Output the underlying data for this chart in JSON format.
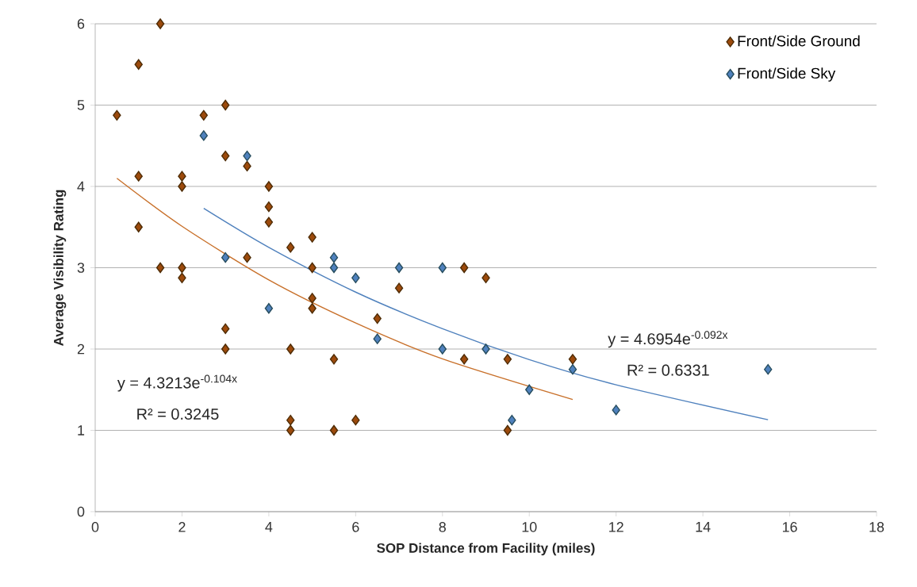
{
  "chart_data": {
    "type": "scatter",
    "xlabel": "SOP Distance from Facility (miles)",
    "ylabel": "Average Visibility Rating",
    "xlim": [
      0,
      18
    ],
    "xticks": [
      0,
      2,
      4,
      6,
      8,
      10,
      12,
      14,
      16,
      18
    ],
    "ylim": [
      0,
      6
    ],
    "yticks": [
      0,
      1,
      2,
      3,
      4,
      5,
      6
    ],
    "grid": "y",
    "legend": "top right",
    "marker": "diamond",
    "series": [
      {
        "name": "Front/Side Ground",
        "color": "#9c4a0c",
        "x": [
          0.5,
          1,
          1,
          1,
          1.5,
          1.5,
          2,
          2,
          2,
          2,
          2.5,
          3,
          3,
          3,
          3,
          3.5,
          3.5,
          4,
          4,
          4,
          4.5,
          4.5,
          4.5,
          4.5,
          5,
          5,
          5,
          5,
          5.5,
          5.5,
          6,
          6.5,
          7,
          8.5,
          8.5,
          9,
          9.5,
          9.5,
          11
        ],
        "values": [
          4.875,
          5.5,
          4.125,
          3.5,
          6,
          3,
          4.125,
          4,
          3,
          2.875,
          4.875,
          5,
          4.375,
          2.25,
          2,
          4.25,
          3.125,
          4,
          3.75,
          3.56,
          3.25,
          2,
          1.125,
          1,
          3.375,
          3,
          2.625,
          2.5,
          1.875,
          1,
          1.125,
          2.375,
          2.75,
          3,
          1.875,
          2.875,
          1.875,
          1,
          1.875
        ]
      },
      {
        "name": "Front/Side Sky",
        "color": "#4f81bd",
        "x": [
          2.5,
          3,
          3.5,
          4,
          5.5,
          5.5,
          6,
          6.5,
          7,
          8,
          8,
          9,
          9.6,
          10,
          11,
          12,
          15.5
        ],
        "values": [
          4.625,
          3.125,
          4.375,
          2.5,
          3.125,
          3,
          2.875,
          2.125,
          3,
          3,
          2,
          2,
          1.125,
          1.5,
          1.75,
          1.25,
          1.75
        ]
      },
      {
        "type": "line",
        "color": "#c8702a",
        "marker": "none",
        "x": [
          0.5,
          2,
          4,
          6,
          8,
          11
        ],
        "values": [
          4.1,
          3.51,
          2.85,
          2.32,
          1.88,
          1.38
        ]
      },
      {
        "type": "line",
        "color": "#4f81bd",
        "marker": "none",
        "x": [
          2.5,
          4,
          6,
          8,
          10,
          12,
          15.5
        ],
        "values": [
          3.73,
          3.25,
          2.7,
          2.25,
          1.87,
          1.56,
          1.13
        ]
      }
    ],
    "annotations": [
      "y = 4.3213e$^{-0.104x}$",
      "R² = 0.3245",
      "y = 4.6954e$^{-0.092x}$",
      "R² = 0.6331"
    ]
  }
}
